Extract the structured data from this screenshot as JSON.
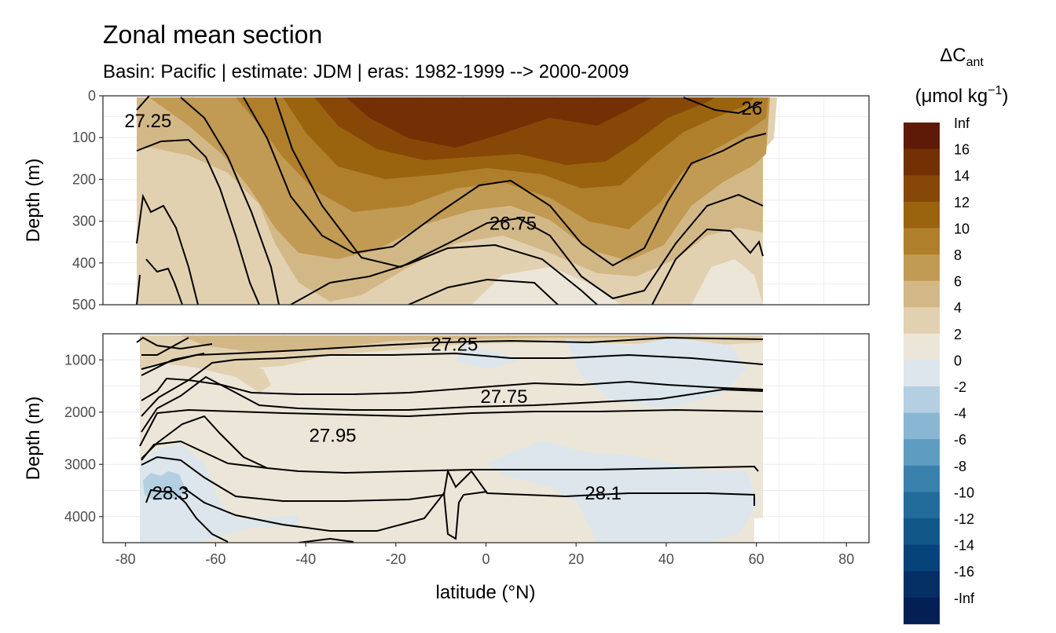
{
  "chart_data": {
    "type": "heatmap",
    "title": "Zonal mean section",
    "subtitle": "Basin: Pacific | estimate: JDM  | eras: 1982-1999 --> 2000-2009",
    "xlabel": "latitude (°N)",
    "x_ticks": [
      "-80",
      "-60",
      "-40",
      "-20",
      "0",
      "20",
      "40",
      "60",
      "80"
    ],
    "xlim": [
      -85,
      85
    ],
    "grid": true,
    "panels": [
      {
        "name": "upper",
        "ylabel": "Depth (m)",
        "ylim": [
          0,
          500
        ],
        "y_ticks": [
          "0",
          "100",
          "200",
          "300",
          "400",
          "500"
        ],
        "contour_labels": [
          {
            "text": "27.25",
            "lat": -75,
            "depth": 60
          },
          {
            "text": "26.75",
            "lat": 6,
            "depth": 305
          },
          {
            "text": "26",
            "lat": 59,
            "depth": 30
          }
        ]
      },
      {
        "name": "lower",
        "ylabel": "Depth (m)",
        "ylim": [
          500,
          4500
        ],
        "y_ticks": [
          "1000",
          "2000",
          "3000",
          "4000"
        ],
        "contour_labels": [
          {
            "text": "27.25",
            "lat": -7,
            "depth": 700
          },
          {
            "text": "27.75",
            "lat": 4,
            "depth": 1700
          },
          {
            "text": "27.95",
            "lat": -34,
            "depth": 2450
          },
          {
            "text": "28.3",
            "lat": -70,
            "depth": 3550
          },
          {
            "text": "28.1",
            "lat": 26,
            "depth": 3550
          }
        ]
      }
    ],
    "legend": {
      "title": "ΔC",
      "title_sub": "ant",
      "unit_pre": "(μmol kg",
      "unit_sup": "−1",
      "unit_post": ")",
      "position": "right",
      "levels": [
        "Inf",
        "16",
        "14",
        "12",
        "10",
        "8",
        "6",
        "4",
        "2",
        "0",
        "-2",
        "-4",
        "-6",
        "-8",
        "-10",
        "-12",
        "-14",
        "-16",
        "-Inf"
      ],
      "colors": [
        "#5e1a06",
        "#733005",
        "#874707",
        "#9a640f",
        "#b07f2b",
        "#c19a53",
        "#d3b887",
        "#e2d1b0",
        "#ece6d9",
        "#dce6ec",
        "#b4cfe1",
        "#89b6d2",
        "#5f9cc1",
        "#3b81ad",
        "#226c9c",
        "#115889",
        "#06437a",
        "#053066",
        "#041f54"
      ]
    }
  }
}
